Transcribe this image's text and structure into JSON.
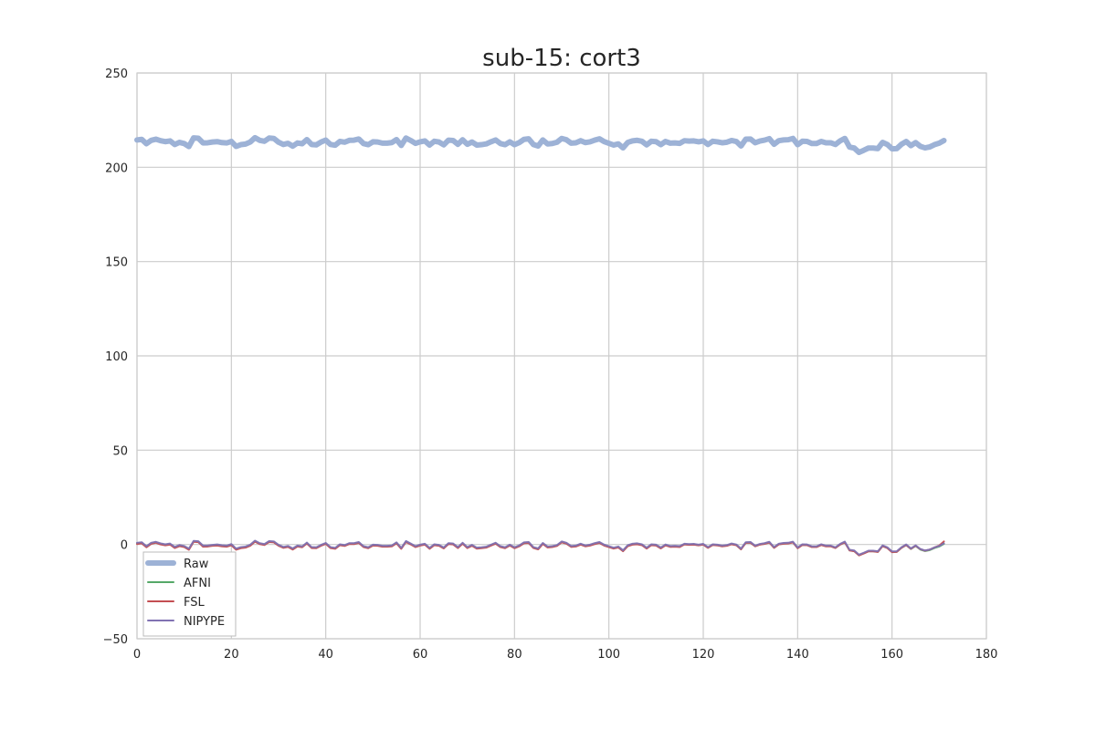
{
  "chart_data": {
    "type": "line",
    "title": "sub-15: cort3",
    "xlabel": "",
    "ylabel": "",
    "xlim": [
      0,
      180
    ],
    "ylim": [
      -50,
      250
    ],
    "xticks": [
      0,
      20,
      40,
      60,
      80,
      100,
      120,
      140,
      160,
      180
    ],
    "yticks": [
      -50,
      0,
      50,
      100,
      150,
      200,
      250
    ],
    "xtick_labels": [
      "0",
      "20",
      "40",
      "60",
      "80",
      "100",
      "120",
      "140",
      "160",
      "180"
    ],
    "ytick_labels": [
      "−50",
      "0",
      "50",
      "100",
      "150",
      "200",
      "250"
    ],
    "grid": true,
    "legend_position": "lower-left",
    "series": [
      {
        "name": "Raw",
        "color": "#9db2d6",
        "linewidth": "thick",
        "x_start": 0,
        "x_step": 1,
        "values": [
          214.5,
          214.8,
          212.5,
          214.3,
          214.9,
          214.1,
          213.6,
          214.0,
          212.1,
          213.2,
          212.6,
          211.0,
          215.6,
          215.4,
          212.9,
          213.0,
          213.4,
          213.6,
          213.1,
          212.9,
          213.7,
          211.1,
          212.0,
          212.3,
          213.4,
          215.7,
          214.3,
          213.8,
          215.5,
          215.3,
          213.3,
          212.1,
          212.7,
          211.2,
          212.9,
          212.5,
          214.7,
          212.1,
          211.9,
          213.4,
          214.4,
          212.1,
          211.7,
          213.7,
          213.3,
          214.3,
          214.4,
          215.0,
          212.6,
          212.0,
          213.5,
          213.4,
          212.8,
          212.8,
          213.1,
          214.7,
          211.6,
          215.5,
          214.2,
          212.7,
          213.5,
          214.0,
          211.8,
          213.8,
          213.4,
          211.9,
          214.4,
          214.2,
          212.2,
          214.6,
          212.2,
          213.4,
          211.8,
          212.0,
          212.4,
          213.5,
          214.5,
          212.6,
          212.0,
          213.5,
          212.0,
          213.1,
          214.8,
          215.1,
          212.1,
          211.3,
          214.5,
          212.4,
          212.6,
          213.3,
          215.3,
          214.6,
          212.8,
          213.0,
          214.1,
          213.1,
          213.5,
          214.4,
          215.1,
          213.6,
          212.7,
          211.8,
          212.4,
          210.3,
          213.2,
          214.0,
          214.3,
          213.8,
          211.9,
          213.8,
          213.6,
          212.0,
          213.7,
          212.8,
          212.9,
          212.7,
          214.1,
          213.9,
          214.0,
          213.5,
          214.0,
          212.1,
          213.8,
          213.5,
          213.0,
          213.3,
          214.2,
          213.7,
          211.3,
          214.9,
          215.0,
          213.0,
          213.9,
          214.4,
          215.2,
          212.2,
          214.1,
          214.5,
          214.6,
          215.3,
          212.0,
          213.8,
          213.7,
          212.6,
          212.6,
          213.7,
          213.0,
          213.0,
          212.1,
          214.0,
          215.3,
          210.7,
          210.2,
          207.9,
          209.0,
          210.2,
          210.2,
          209.9,
          213.2,
          212.1,
          209.8,
          209.9,
          212.2,
          213.7,
          211.5,
          213.1,
          211.1,
          210.3,
          210.8,
          212.0,
          212.8,
          214.2
        ]
      },
      {
        "name": "AFNI",
        "color": "#55a868",
        "linewidth": "thin",
        "x_start": 0,
        "x_step": 1,
        "values": [
          0.6,
          0.9,
          -1.2,
          0.6,
          1.1,
          0.3,
          -0.2,
          0.2,
          -1.6,
          -0.6,
          -1.1,
          -2.5,
          1.6,
          1.4,
          -0.9,
          -0.8,
          -0.5,
          -0.3,
          -0.7,
          -0.9,
          -0.1,
          -2.5,
          -1.7,
          -1.4,
          -0.4,
          1.7,
          0.4,
          -0.1,
          1.5,
          1.3,
          -0.5,
          -1.6,
          -1.1,
          -2.4,
          -0.9,
          -1.3,
          0.7,
          -1.7,
          -1.8,
          -0.5,
          0.5,
          -1.7,
          -2.1,
          -0.2,
          -0.6,
          0.4,
          0.4,
          1.0,
          -1.2,
          -1.8,
          -0.4,
          -0.5,
          -1.0,
          -1.0,
          -0.8,
          0.8,
          -2.1,
          1.5,
          0.2,
          -1.2,
          -0.4,
          0.1,
          -2.1,
          -0.2,
          -0.5,
          -1.9,
          0.4,
          0.2,
          -1.7,
          0.6,
          -1.7,
          -0.5,
          -2.0,
          -1.8,
          -1.5,
          -0.4,
          0.6,
          -1.2,
          -1.8,
          -0.4,
          -1.8,
          -0.8,
          0.8,
          1.0,
          -1.7,
          -2.4,
          0.5,
          -1.4,
          -1.2,
          -0.6,
          1.3,
          0.6,
          -1.1,
          -0.9,
          0.1,
          -0.8,
          -0.4,
          0.4,
          1.0,
          -0.4,
          -1.2,
          -2.0,
          -1.4,
          -3.4,
          -0.7,
          0.1,
          0.3,
          -0.2,
          -2.0,
          -0.2,
          -0.4,
          -1.9,
          -0.3,
          -1.1,
          -1.0,
          -1.2,
          0.1,
          -0.1,
          0.0,
          -0.4,
          0.0,
          -1.7,
          -0.2,
          -0.4,
          -0.9,
          -0.6,
          0.2,
          -0.3,
          -2.5,
          0.9,
          1.0,
          -0.9,
          0.0,
          0.4,
          1.1,
          -1.7,
          0.1,
          0.5,
          0.6,
          1.2,
          -1.9,
          -0.2,
          -0.3,
          -1.3,
          -1.3,
          -0.2,
          -0.9,
          -0.9,
          -1.8,
          0.0,
          1.2,
          -3.1,
          -3.5,
          -5.7,
          -4.7,
          -3.6,
          -3.6,
          -3.9,
          -0.8,
          -1.8,
          -4.0,
          -3.9,
          -1.8,
          -0.3,
          -2.4,
          -0.8,
          -2.7,
          -3.5,
          -3.0,
          -1.9,
          -1.1,
          0.3
        ]
      },
      {
        "name": "FSL",
        "color": "#c44e52",
        "linewidth": "thin",
        "x_start": 0,
        "x_step": 1,
        "values": [
          0.2,
          0.6,
          -1.5,
          0.3,
          0.9,
          0.0,
          -0.5,
          -0.1,
          -1.9,
          -0.9,
          -1.4,
          -2.8,
          1.4,
          1.2,
          -1.2,
          -1.1,
          -0.7,
          -0.6,
          -1.0,
          -1.2,
          -0.4,
          -2.8,
          -2.0,
          -1.7,
          -0.7,
          1.5,
          0.2,
          -0.3,
          1.3,
          1.1,
          -0.7,
          -1.8,
          -1.3,
          -2.7,
          -1.1,
          -1.5,
          0.5,
          -1.9,
          -2.0,
          -0.7,
          0.3,
          -1.9,
          -2.3,
          -0.4,
          -0.8,
          0.2,
          0.2,
          0.8,
          -1.4,
          -2.0,
          -0.6,
          -0.7,
          -1.2,
          -1.2,
          -1.0,
          0.6,
          -2.3,
          1.3,
          0.0,
          -1.4,
          -0.6,
          -0.1,
          -2.3,
          -0.4,
          -0.7,
          -2.1,
          0.2,
          0.0,
          -1.9,
          0.4,
          -1.9,
          -0.7,
          -2.2,
          -2.0,
          -1.7,
          -0.6,
          0.4,
          -1.4,
          -2.0,
          -0.6,
          -2.0,
          -1.0,
          0.6,
          0.8,
          -1.9,
          -2.6,
          0.3,
          -1.6,
          -1.4,
          -0.8,
          1.1,
          0.4,
          -1.3,
          -1.1,
          -0.1,
          -1.0,
          -0.6,
          0.2,
          0.8,
          -0.6,
          -1.4,
          -2.2,
          -1.6,
          -3.6,
          -0.9,
          -0.1,
          0.1,
          -0.4,
          -2.2,
          -0.4,
          -0.6,
          -2.1,
          -0.5,
          -1.3,
          -1.2,
          -1.4,
          0.0,
          -0.2,
          -0.1,
          -0.5,
          -0.1,
          -1.8,
          -0.3,
          -0.5,
          -1.0,
          -0.7,
          0.1,
          -0.4,
          -2.6,
          0.8,
          0.9,
          -1.0,
          -0.1,
          0.3,
          1.0,
          -1.8,
          0.0,
          0.4,
          0.5,
          1.1,
          -2.0,
          -0.3,
          -0.4,
          -1.4,
          -1.4,
          -0.3,
          -1.0,
          -1.0,
          -1.9,
          -0.1,
          1.1,
          -3.2,
          -3.6,
          -5.8,
          -4.8,
          -3.7,
          -3.7,
          -4.0,
          -0.9,
          -1.9,
          -4.1,
          -4.0,
          -1.8,
          -0.3,
          -2.3,
          -0.7,
          -2.5,
          -3.3,
          -2.7,
          -1.6,
          -0.6,
          1.6
        ]
      },
      {
        "name": "NIPYPE",
        "color": "#8172b2",
        "linewidth": "thin",
        "x_start": 0,
        "x_step": 1,
        "values": [
          0.9,
          1.2,
          -0.9,
          0.9,
          1.4,
          0.6,
          0.1,
          0.5,
          -1.3,
          -0.3,
          -0.8,
          -2.2,
          1.9,
          1.7,
          -0.6,
          -0.5,
          -0.2,
          0.0,
          -0.4,
          -0.6,
          0.2,
          -2.2,
          -1.4,
          -1.1,
          -0.1,
          2.0,
          0.7,
          0.2,
          1.8,
          1.6,
          -0.2,
          -1.3,
          -0.8,
          -2.1,
          -0.6,
          -1.0,
          1.0,
          -1.4,
          -1.5,
          -0.2,
          0.8,
          -1.4,
          -1.8,
          0.1,
          -0.3,
          0.7,
          0.7,
          1.3,
          -0.9,
          -1.5,
          -0.1,
          -0.2,
          -0.7,
          -0.7,
          -0.5,
          1.1,
          -1.8,
          1.8,
          0.5,
          -0.9,
          -0.1,
          0.4,
          -1.8,
          0.1,
          -0.2,
          -1.6,
          0.7,
          0.5,
          -1.4,
          0.9,
          -1.4,
          -0.2,
          -1.7,
          -1.5,
          -1.2,
          -0.1,
          0.9,
          -0.9,
          -1.5,
          -0.1,
          -1.5,
          -0.5,
          1.1,
          1.3,
          -1.4,
          -2.1,
          0.8,
          -1.1,
          -0.9,
          -0.3,
          1.6,
          0.9,
          -0.8,
          -0.6,
          0.4,
          -0.5,
          -0.1,
          0.7,
          1.3,
          -0.1,
          -0.9,
          -1.7,
          -1.1,
          -3.1,
          -0.4,
          0.4,
          0.6,
          0.1,
          -1.7,
          0.1,
          -0.1,
          -1.6,
          0.0,
          -0.8,
          -0.7,
          -0.9,
          0.4,
          0.2,
          0.3,
          -0.1,
          0.3,
          -1.4,
          0.1,
          -0.1,
          -0.6,
          -0.3,
          0.5,
          0.0,
          -2.2,
          1.2,
          1.3,
          -0.6,
          0.3,
          0.7,
          1.4,
          -1.4,
          0.4,
          0.8,
          0.9,
          1.5,
          -1.6,
          0.1,
          0.0,
          -1.0,
          -1.0,
          0.1,
          -0.6,
          -0.6,
          -1.5,
          0.3,
          1.5,
          -2.8,
          -3.2,
          -5.4,
          -4.4,
          -3.3,
          -3.3,
          -3.6,
          -0.5,
          -1.5,
          -3.7,
          -3.6,
          -1.5,
          0.0,
          -2.1,
          -0.5,
          -2.4,
          -3.2,
          -2.7,
          -1.6,
          -0.8,
          0.6
        ]
      }
    ]
  }
}
